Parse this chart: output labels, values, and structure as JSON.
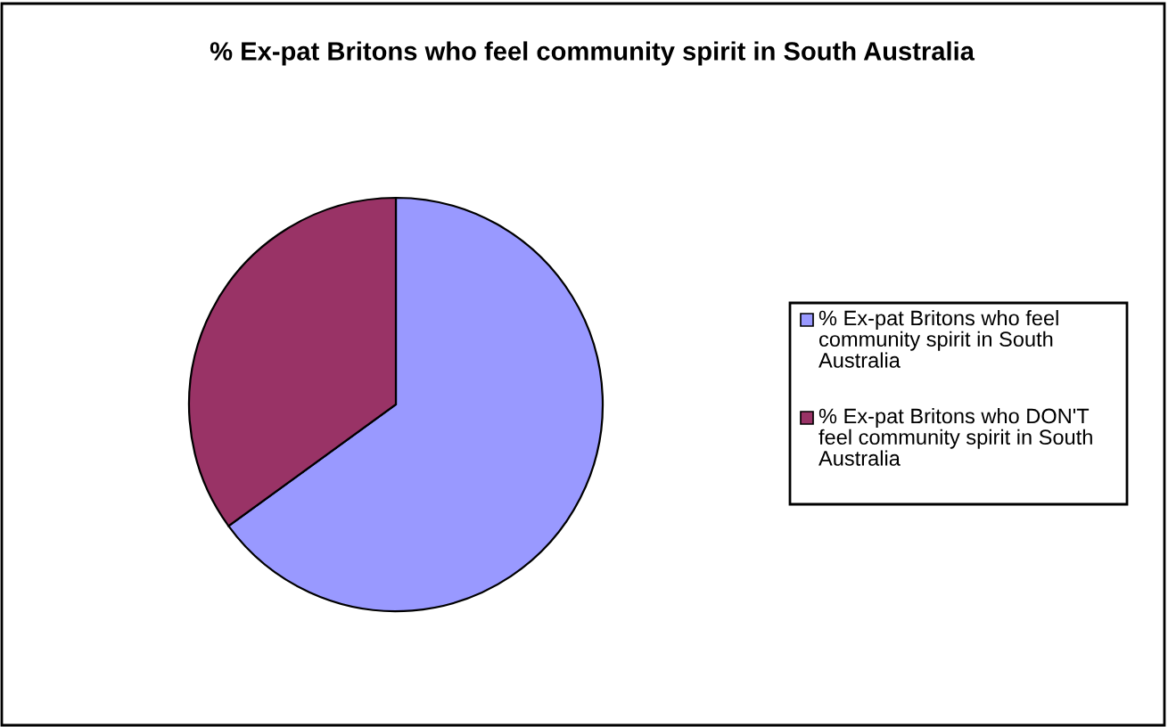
{
  "chart_data": {
    "type": "pie",
    "title": "% Ex-pat Britons who feel community spirit in South Australia",
    "categories": [
      "% Ex-pat Britons who feel community spirit in South Australia",
      "% Ex-pat Britons who DON'T feel community spirit in South Australia"
    ],
    "values": [
      65,
      35
    ],
    "colors": [
      "#9999ff",
      "#993366"
    ],
    "legend": "right"
  }
}
